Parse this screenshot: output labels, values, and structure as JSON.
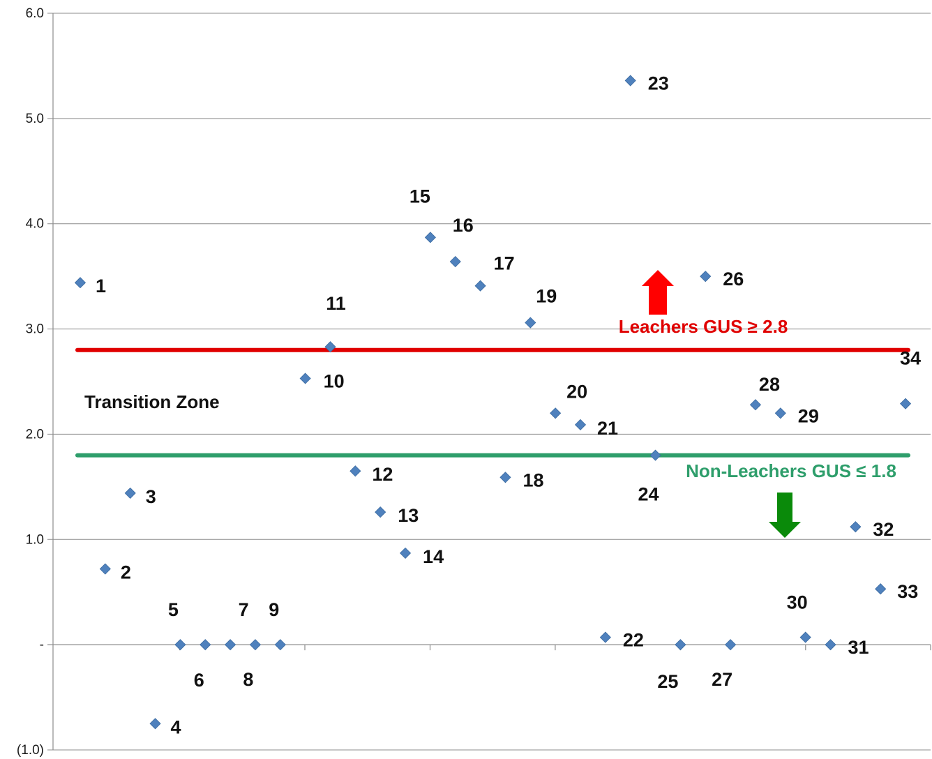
{
  "chart_data": {
    "type": "scatter",
    "title": "",
    "xlabel": "",
    "ylabel": "",
    "ylim": [
      -1,
      6
    ],
    "y_ticks": [
      6,
      5,
      4,
      3,
      2,
      1,
      0,
      -1
    ],
    "y_tick_labels": [
      "6.0",
      "5.0",
      "4.0",
      "3.0",
      "2.0",
      "1.0",
      "-",
      "(1.0)"
    ],
    "grid": "horizontal",
    "marker_color": "#4F81BD",
    "points": [
      {
        "x": 1,
        "y": 3.44,
        "label": "1"
      },
      {
        "x": 2,
        "y": 0.72,
        "label": "2"
      },
      {
        "x": 3,
        "y": 1.44,
        "label": "3"
      },
      {
        "x": 4,
        "y": -0.75,
        "label": "4"
      },
      {
        "x": 5,
        "y": 0.0,
        "label": "5"
      },
      {
        "x": 6,
        "y": 0.0,
        "label": "6"
      },
      {
        "x": 7,
        "y": 0.0,
        "label": "7"
      },
      {
        "x": 8,
        "y": 0.0,
        "label": "8"
      },
      {
        "x": 9,
        "y": 0.0,
        "label": "9"
      },
      {
        "x": 10,
        "y": 2.53,
        "label": "10"
      },
      {
        "x": 11,
        "y": 2.83,
        "label": "11"
      },
      {
        "x": 12,
        "y": 1.65,
        "label": "12"
      },
      {
        "x": 13,
        "y": 1.26,
        "label": "13"
      },
      {
        "x": 14,
        "y": 0.87,
        "label": "14"
      },
      {
        "x": 15,
        "y": 3.87,
        "label": "15"
      },
      {
        "x": 16,
        "y": 3.64,
        "label": "16"
      },
      {
        "x": 17,
        "y": 3.41,
        "label": "17"
      },
      {
        "x": 18,
        "y": 1.59,
        "label": "18"
      },
      {
        "x": 19,
        "y": 3.06,
        "label": "19"
      },
      {
        "x": 20,
        "y": 2.2,
        "label": "20"
      },
      {
        "x": 21,
        "y": 2.09,
        "label": "21"
      },
      {
        "x": 22,
        "y": 0.07,
        "label": "22"
      },
      {
        "x": 23,
        "y": 5.36,
        "label": "23"
      },
      {
        "x": 24,
        "y": 1.8,
        "label": "24"
      },
      {
        "x": 25,
        "y": 0.0,
        "label": "25"
      },
      {
        "x": 26,
        "y": 3.5,
        "label": "26"
      },
      {
        "x": 27,
        "y": 0.0,
        "label": "27"
      },
      {
        "x": 28,
        "y": 2.28,
        "label": "28"
      },
      {
        "x": 29,
        "y": 2.2,
        "label": "29"
      },
      {
        "x": 30,
        "y": 0.07,
        "label": "30"
      },
      {
        "x": 31,
        "y": 0.0,
        "label": "31"
      },
      {
        "x": 32,
        "y": 1.12,
        "label": "32"
      },
      {
        "x": 33,
        "y": 0.53,
        "label": "33"
      },
      {
        "x": 34,
        "y": 2.29,
        "label": "34"
      }
    ],
    "thresholds": [
      {
        "name": "leachers",
        "y": 2.8,
        "color": "#E00000",
        "label": "Leachers GUS ≥ 2.8"
      },
      {
        "name": "non-leachers",
        "y": 1.8,
        "color": "#2E9E6B",
        "label": "Non-Leachers GUS ≤ 1.8"
      }
    ],
    "annotations": [
      {
        "name": "transition-zone",
        "text": "Transition Zone",
        "color": "#111111"
      }
    ],
    "arrows": [
      {
        "name": "leachers-up-arrow",
        "direction": "up",
        "color": "#FF0000"
      },
      {
        "name": "non-leachers-down-arrow",
        "direction": "down",
        "color": "#0A8A0A"
      }
    ]
  }
}
